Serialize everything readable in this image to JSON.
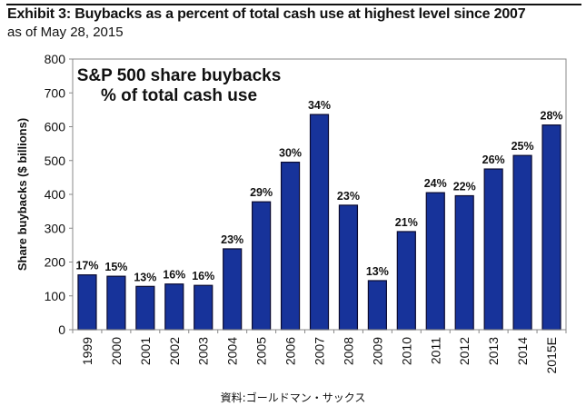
{
  "header": {
    "title": "Exhibit 3: Buybacks as a percent of total cash use at highest level since 2007",
    "subtitle": "as of May 28, 2015"
  },
  "footer": {
    "source": "資料:ゴールドマン・サックス"
  },
  "colors": {
    "bar": "#17339a",
    "bar_outline": "#0a0a30",
    "axis": "#888888"
  },
  "chart_data": {
    "type": "bar",
    "title": "S&P 500 share buybacks",
    "subtitle": "% of total cash use",
    "xlabel": "",
    "ylabel": "Share buybacks ($ billions)",
    "ylim": [
      0,
      800
    ],
    "yticks": [
      0,
      100,
      200,
      300,
      400,
      500,
      600,
      700,
      800
    ],
    "grid": false,
    "categories": [
      "1999",
      "2000",
      "2001",
      "2002",
      "2003",
      "2004",
      "2005",
      "2006",
      "2007",
      "2008",
      "2009",
      "2010",
      "2011",
      "2012",
      "2013",
      "2014",
      "2015E"
    ],
    "values": [
      162,
      158,
      128,
      135,
      131,
      239,
      378,
      495,
      636,
      368,
      145,
      290,
      405,
      396,
      475,
      515,
      605
    ],
    "labels": [
      "17%",
      "15%",
      "13%",
      "16%",
      "16%",
      "23%",
      "29%",
      "30%",
      "34%",
      "23%",
      "13%",
      "21%",
      "24%",
      "22%",
      "26%",
      "25%",
      "28%"
    ]
  }
}
